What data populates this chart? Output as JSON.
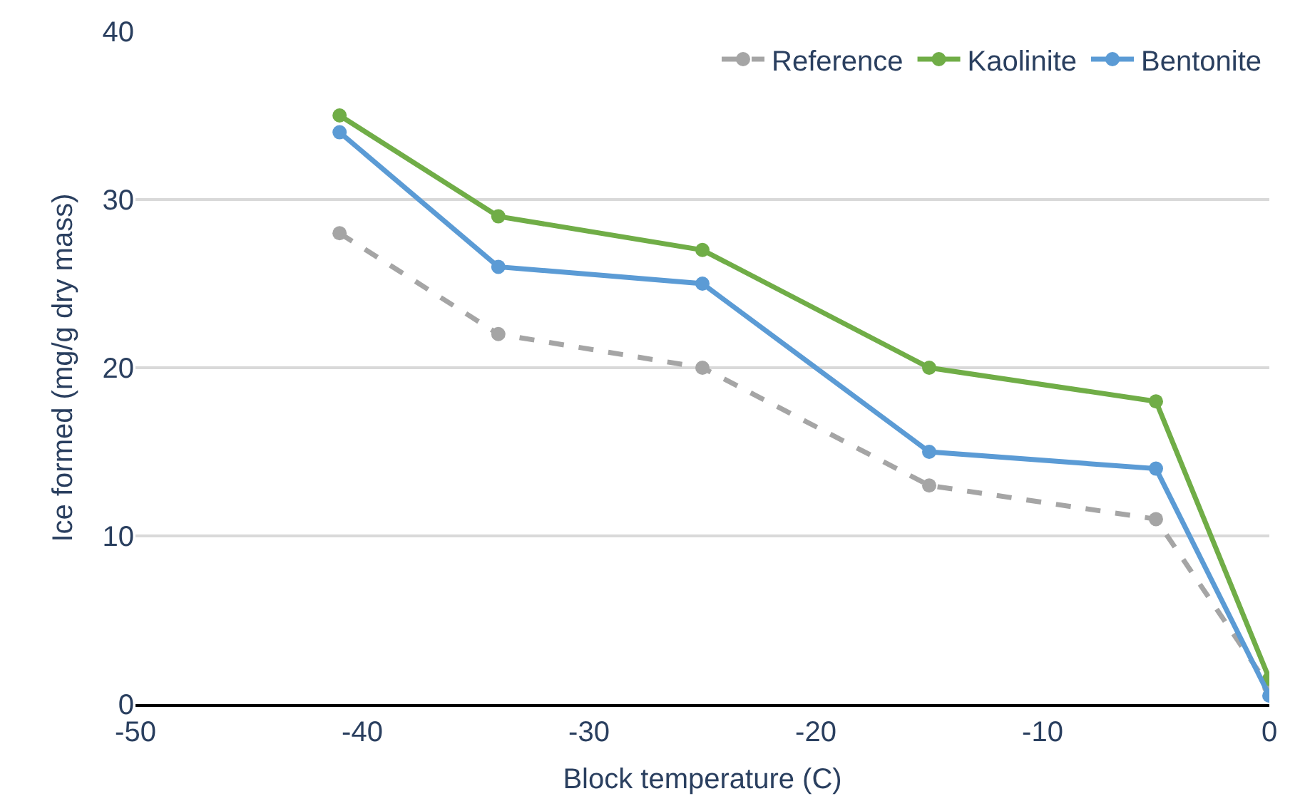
{
  "chart_data": {
    "type": "line",
    "xlabel": "Block temperature (C)",
    "ylabel": "Ice formed (mg/g dry mass)",
    "x": [
      -41,
      -34,
      -25,
      -15,
      -5,
      0
    ],
    "series": [
      {
        "name": "Reference",
        "color": "#a5a5a5",
        "line_style": "dashed",
        "values": [
          28,
          22,
          20,
          13,
          11,
          1
        ]
      },
      {
        "name": "Kaolinite",
        "color": "#70ad47",
        "values": [
          35,
          29,
          27,
          20,
          18,
          1.5
        ]
      },
      {
        "name": "Bentonite",
        "color": "#5b9bd5",
        "values": [
          34,
          26,
          25,
          15,
          14,
          0.5
        ]
      }
    ],
    "xlim": [
      -50,
      0
    ],
    "xticks": [
      -50,
      -40,
      -30,
      -20,
      -10,
      0
    ],
    "ylim": [
      0,
      40
    ],
    "yticks": [
      0,
      10,
      20,
      30,
      40
    ],
    "grid": "y",
    "legend": "top right",
    "marker": "circle",
    "line_style": "solid"
  }
}
